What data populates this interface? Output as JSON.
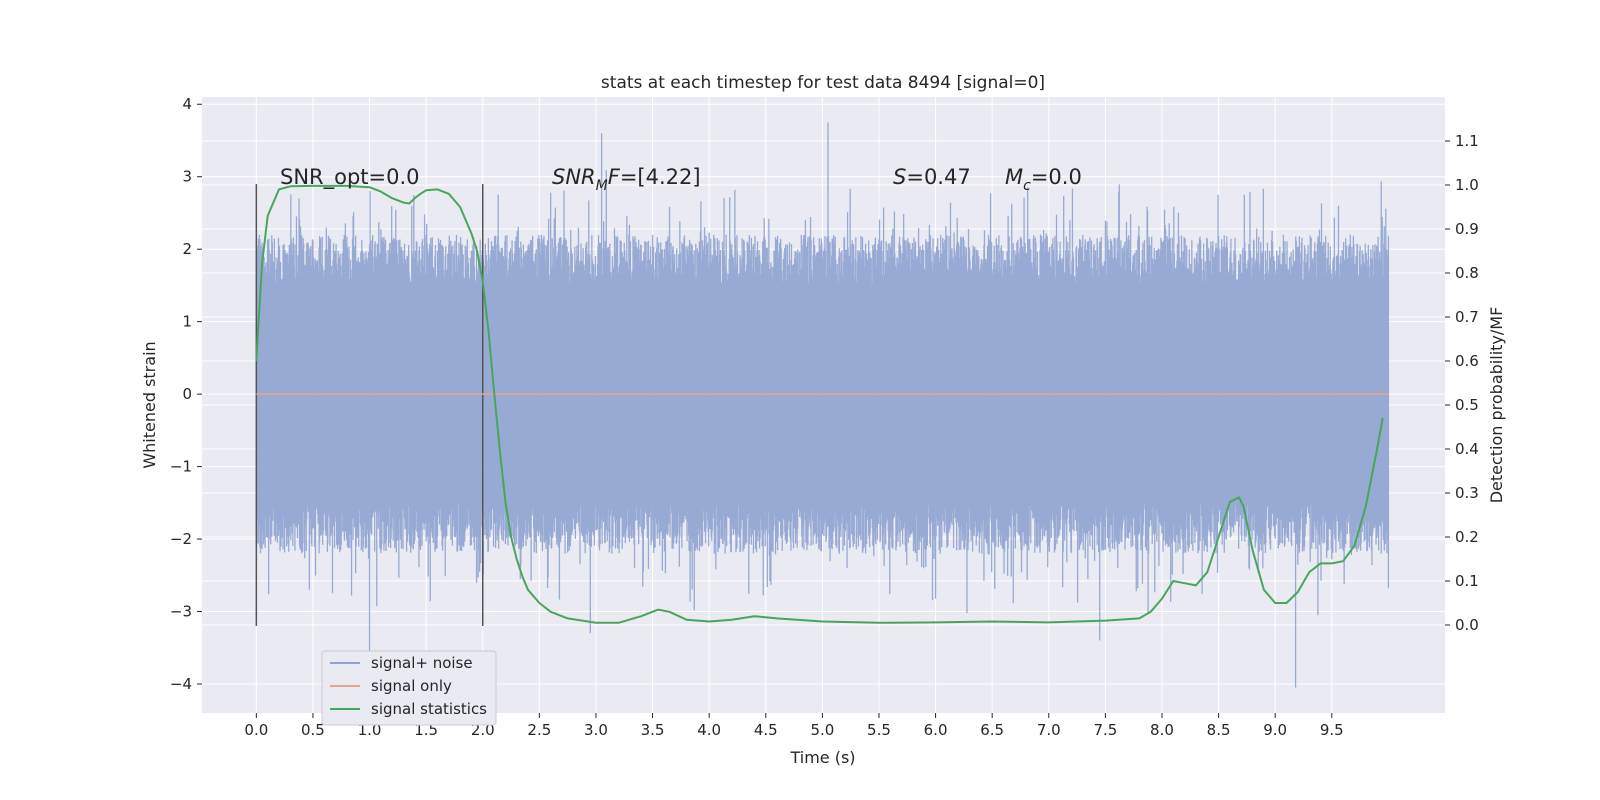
{
  "chart_data": {
    "type": "line",
    "title": "stats at each timestep for test data 8494 [signal=0]",
    "xlabel": "Time (s)",
    "ylabel_left": "Whitened strain",
    "ylabel_right": "Detection probability/MF",
    "xlim": [
      -0.48,
      10.5
    ],
    "ylim_left": [
      -4.4,
      4.1
    ],
    "ylim_right": [
      -0.2,
      1.2
    ],
    "x_ticks": [
      "0.0",
      "0.5",
      "1.0",
      "1.5",
      "2.0",
      "2.5",
      "3.0",
      "3.5",
      "4.0",
      "4.5",
      "5.0",
      "5.5",
      "6.0",
      "6.5",
      "7.0",
      "7.5",
      "8.0",
      "8.5",
      "9.0",
      "9.5"
    ],
    "y_left_ticks": [
      "−4",
      "−3",
      "−2",
      "−1",
      "0",
      "1",
      "2",
      "3",
      "4"
    ],
    "y_right_ticks": [
      "0.0",
      "0.1",
      "0.2",
      "0.3",
      "0.4",
      "0.5",
      "0.6",
      "0.7",
      "0.8",
      "0.9",
      "1.0",
      "1.1"
    ],
    "grid": true,
    "legend_position": "bottom-left",
    "series": [
      {
        "name": "signal+ noise",
        "color": "#8ea3cf",
        "axis": "left",
        "x_range": [
          0.0,
          10.0
        ],
        "typical_amplitude": 2.0,
        "peak_max": 3.75,
        "peak_min": -4.05
      },
      {
        "name": "signal only",
        "color": "#e8a487",
        "axis": "left",
        "x": [
          0.0,
          10.0
        ],
        "y": [
          0.0,
          0.0
        ]
      },
      {
        "name": "signal statistics",
        "color": "#4aa55c",
        "axis": "right",
        "x": [
          0.0,
          0.05,
          0.1,
          0.15,
          0.2,
          0.3,
          0.5,
          0.8,
          1.0,
          1.1,
          1.2,
          1.3,
          1.35,
          1.4,
          1.45,
          1.5,
          1.6,
          1.7,
          1.8,
          1.9,
          1.95,
          2.0,
          2.05,
          2.1,
          2.15,
          2.2,
          2.25,
          2.3,
          2.35,
          2.4,
          2.5,
          2.6,
          2.75,
          3.0,
          3.2,
          3.4,
          3.55,
          3.65,
          3.8,
          4.0,
          4.2,
          4.4,
          4.6,
          5.0,
          5.5,
          6.0,
          6.5,
          7.0,
          7.5,
          7.8,
          7.9,
          8.0,
          8.1,
          8.2,
          8.3,
          8.4,
          8.5,
          8.6,
          8.68,
          8.72,
          8.8,
          8.9,
          9.0,
          9.1,
          9.2,
          9.3,
          9.4,
          9.5,
          9.6,
          9.7,
          9.8,
          9.9,
          9.95
        ],
        "y": [
          0.6,
          0.82,
          0.93,
          0.96,
          0.99,
          0.997,
          0.998,
          0.998,
          0.995,
          0.985,
          0.97,
          0.96,
          0.958,
          0.97,
          0.98,
          0.988,
          0.99,
          0.98,
          0.95,
          0.89,
          0.85,
          0.78,
          0.67,
          0.53,
          0.4,
          0.28,
          0.2,
          0.15,
          0.11,
          0.08,
          0.05,
          0.03,
          0.015,
          0.005,
          0.005,
          0.02,
          0.035,
          0.03,
          0.012,
          0.008,
          0.012,
          0.02,
          0.015,
          0.008,
          0.005,
          0.006,
          0.008,
          0.006,
          0.01,
          0.015,
          0.03,
          0.06,
          0.1,
          0.095,
          0.09,
          0.12,
          0.2,
          0.28,
          0.29,
          0.27,
          0.17,
          0.08,
          0.05,
          0.05,
          0.075,
          0.12,
          0.14,
          0.14,
          0.145,
          0.18,
          0.27,
          0.4,
          0.47
        ]
      }
    ],
    "vertical_lines": [
      0.0,
      2.0
    ],
    "vertical_lines_ylim_left": [
      -3.2,
      2.9
    ],
    "annotations": [
      {
        "text": "SNR_opt=0.0",
        "x": 0.2,
        "y_right": 1.0
      },
      {
        "text": "SNRMF=[4.22]",
        "x": 2.6,
        "y_right": 1.0
      },
      {
        "text": "S=0.47",
        "x": 5.6,
        "y_right": 1.0
      },
      {
        "text": "Mc=0.0",
        "x": 6.6,
        "y_right": 1.0
      }
    ]
  }
}
